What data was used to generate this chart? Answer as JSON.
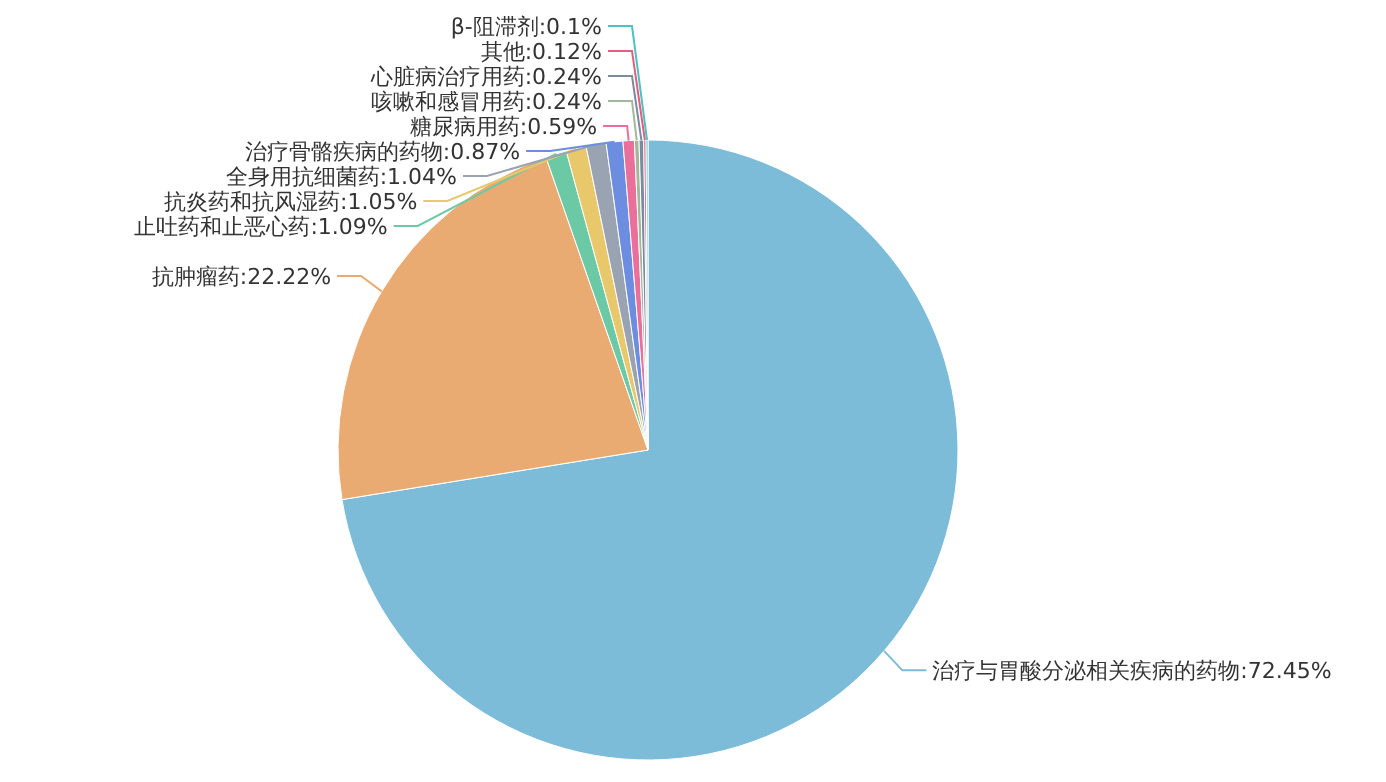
{
  "chart_data": {
    "type": "pie",
    "categories": [
      "治疗与胃酸分泌相关疾病的药物",
      "抗肿瘤药",
      "止吐药和止恶心药",
      "抗炎药和抗风湿药",
      "全身用抗细菌药",
      "治疗骨骼疾病的药物",
      "糖尿病用药",
      "咳嗽和感冒用药",
      "心脏病治疗用药",
      "其他",
      "β-阻滞剂"
    ],
    "values": [
      72.45,
      22.22,
      1.09,
      1.05,
      1.04,
      0.87,
      0.59,
      0.24,
      0.24,
      0.12,
      0.1
    ],
    "colors": [
      "#7dbcd9",
      "#eaab73",
      "#6cc9a6",
      "#e8c86a",
      "#9aa3b1",
      "#6d8ee0",
      "#ea6f9b",
      "#a3b89a",
      "#7a8aa0",
      "#e0607e",
      "#4fc1c6"
    ],
    "value_labels": [
      ":72.45%",
      ":22.22%",
      ":1.09%",
      ":1.05%",
      ":1.04%",
      ":0.87%",
      ":0.59%",
      ":0.24%",
      ":0.24%",
      ":0.12%",
      ":0.1%"
    ]
  }
}
